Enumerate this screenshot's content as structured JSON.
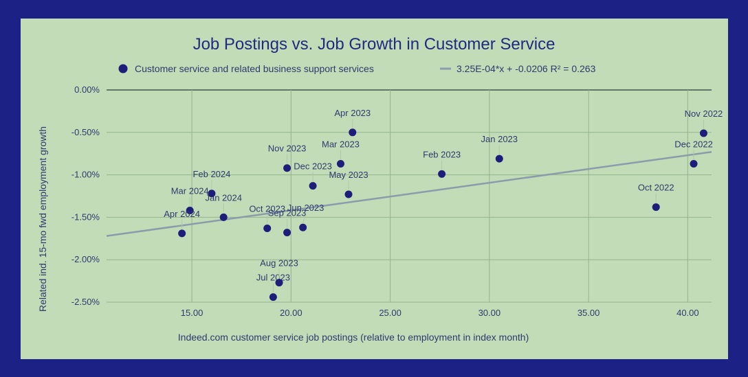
{
  "chart_data": {
    "type": "scatter",
    "title": "Job Postings vs. Job Growth in Customer Service",
    "xlabel": "Indeed.com customer service job postings (relative to employment in index month)",
    "ylabel": "Related ind. 15-mo fwd employment growth",
    "xlim": [
      10.7,
      41.2
    ],
    "ylim": [
      -2.5,
      0.0
    ],
    "xticks": [
      15,
      20,
      25,
      30,
      35,
      40
    ],
    "xtick_labels": [
      "15.00",
      "20.00",
      "25.00",
      "30.00",
      "35.00",
      "40.00"
    ],
    "yticks": [
      0,
      -0.5,
      -1.0,
      -1.5,
      -2.0,
      -2.5
    ],
    "ytick_labels": [
      "0.00%",
      "-0.50%",
      "-1.00%",
      "-1.50%",
      "-2.00%",
      "-2.50%"
    ],
    "grid": true,
    "colors": {
      "points": "#1c1e7a",
      "trendline": "#8a9cac",
      "grid": "#93b38b",
      "zero_line": "#2b3b35"
    },
    "series": [
      {
        "name": "Customer service and related business support services",
        "points": [
          {
            "label": "Oct 2022",
            "x": 38.4,
            "y": -1.38
          },
          {
            "label": "Nov 2022",
            "x": 40.8,
            "y": -0.51
          },
          {
            "label": "Dec 2022",
            "x": 40.3,
            "y": -0.87
          },
          {
            "label": "Jan 2023",
            "x": 30.5,
            "y": -0.81
          },
          {
            "label": "Feb 2023",
            "x": 27.6,
            "y": -0.99
          },
          {
            "label": "Mar 2023",
            "x": 22.5,
            "y": -0.87
          },
          {
            "label": "Apr 2023",
            "x": 23.1,
            "y": -0.5
          },
          {
            "label": "May 2023",
            "x": 22.9,
            "y": -1.23
          },
          {
            "label": "Jun 2023",
            "x": 20.6,
            "y": -1.62
          },
          {
            "label": "Jul 2023",
            "x": 19.1,
            "y": -2.44
          },
          {
            "label": "Aug 2023",
            "x": 19.4,
            "y": -2.27
          },
          {
            "label": "Sep 2023",
            "x": 19.8,
            "y": -1.68
          },
          {
            "label": "Oct 2023",
            "x": 18.8,
            "y": -1.63
          },
          {
            "label": "Nov 2023",
            "x": 19.8,
            "y": -0.92
          },
          {
            "label": "Dec 2023",
            "x": 21.1,
            "y": -1.13
          },
          {
            "label": "Jan 2024",
            "x": 16.6,
            "y": -1.5
          },
          {
            "label": "Feb 2024",
            "x": 16.0,
            "y": -1.22
          },
          {
            "label": "Mar 2024",
            "x": 14.9,
            "y": -1.42
          },
          {
            "label": "Apr 2024",
            "x": 14.5,
            "y": -1.69
          }
        ]
      }
    ],
    "trendline": {
      "label": "3.25E-04*x + -0.0206 R² = 0.263",
      "y_at_xmin": -1.72,
      "y_at_xmax": -0.73
    },
    "legend_position": "top"
  }
}
